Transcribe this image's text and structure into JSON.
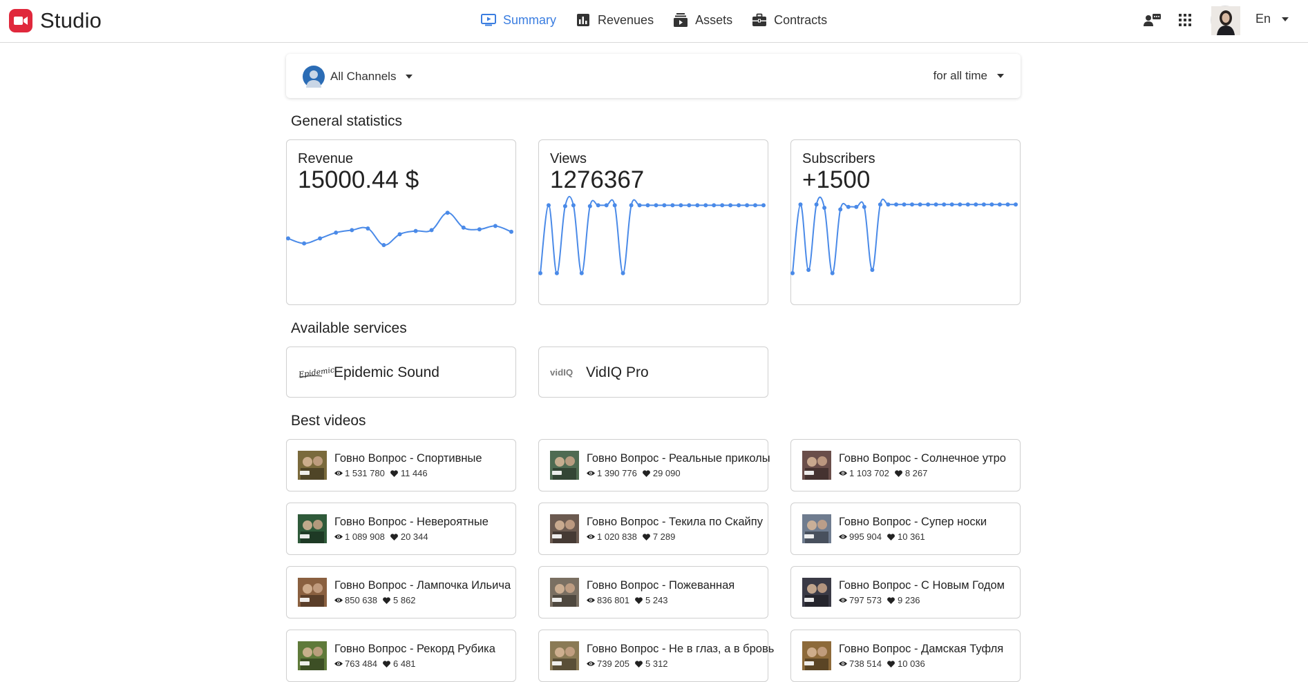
{
  "header": {
    "brand": "Studio",
    "nav": [
      {
        "label": "Summary",
        "icon": "play-screen-icon",
        "active": true
      },
      {
        "label": "Revenues",
        "icon": "bar-chart-icon",
        "active": false
      },
      {
        "label": "Assets",
        "icon": "film-stack-icon",
        "active": false
      },
      {
        "label": "Contracts",
        "icon": "briefcase-icon",
        "active": false
      }
    ],
    "language": "En"
  },
  "filters": {
    "channel": "All Channels",
    "period": "for all time"
  },
  "sections": {
    "general": "General statistics",
    "services": "Available services",
    "videos": "Best videos"
  },
  "stats": [
    {
      "label": "Revenue",
      "value": "15000.44 $",
      "series": [
        48,
        42,
        48,
        55,
        58,
        60,
        40,
        53,
        57,
        58,
        79,
        61,
        59,
        63,
        56
      ]
    },
    {
      "label": "Views",
      "value": "1276367",
      "series": [
        6,
        88,
        6,
        87,
        88,
        6,
        87,
        88,
        88,
        88,
        6,
        88,
        88,
        88,
        88,
        88,
        88,
        88,
        88,
        88,
        88,
        88,
        88,
        88,
        88,
        88,
        88,
        88
      ]
    },
    {
      "label": "Subscribers",
      "value": "+1500",
      "series": [
        6,
        89,
        10,
        89,
        85,
        6,
        83,
        86,
        86,
        86,
        10,
        89,
        89,
        89,
        89,
        89,
        89,
        89,
        89,
        89,
        89,
        89,
        89,
        89,
        89,
        89,
        89,
        89,
        89
      ]
    }
  ],
  "services": [
    {
      "name": "Epidemic Sound",
      "logo_text": "Epidemic"
    },
    {
      "name": "VidIQ Pro",
      "logo_text": "vidIQ"
    }
  ],
  "videos": [
    {
      "title": "Говно Вопрос - Спортивные",
      "views": "1 531 780",
      "likes": "11 446",
      "color": "#7a6a3c"
    },
    {
      "title": "Говно Вопрос - Реальные приколы",
      "views": "1 390 776",
      "likes": "29 090",
      "color": "#4f6b52"
    },
    {
      "title": "Говно Вопрос - Солнечное утро",
      "views": "1 103 702",
      "likes": "8 267",
      "color": "#6a4e4a"
    },
    {
      "title": "Говно Вопрос - Невероятные",
      "views": "1 089 908",
      "likes": "20 344",
      "color": "#2f5a3a"
    },
    {
      "title": "Говно Вопрос - Текила по Скайпу",
      "views": "1 020 838",
      "likes": "7 289",
      "color": "#6b5a50"
    },
    {
      "title": "Говно Вопрос - Супер носки",
      "views": "995 904",
      "likes": "10 361",
      "color": "#6f7c8f"
    },
    {
      "title": "Говно Вопрос - Лампочка Ильича",
      "views": "850 638",
      "likes": "5 862",
      "color": "#8a6040"
    },
    {
      "title": "Говно Вопрос - Пожеванная",
      "views": "836 801",
      "likes": "5 243",
      "color": "#7a6f62"
    },
    {
      "title": "Говно Вопрос - С Новым Годом",
      "views": "797 573",
      "likes": "9 236",
      "color": "#3a3a46"
    },
    {
      "title": "Говно Вопрос - Рекорд Рубика",
      "views": "763 484",
      "likes": "6 481",
      "color": "#5f7a3a"
    },
    {
      "title": "Говно Вопрос - Не в глаз, а в бровь",
      "views": "739 205",
      "likes": "5 312",
      "color": "#8a7a55"
    },
    {
      "title": "Говно Вопрос - Дамская Туфля",
      "views": "738 514",
      "likes": "10 036",
      "color": "#8d6a3a"
    }
  ],
  "colors": {
    "accent": "#3a7de0",
    "spark": "#4a8ae8",
    "brand": "#e0283c"
  }
}
